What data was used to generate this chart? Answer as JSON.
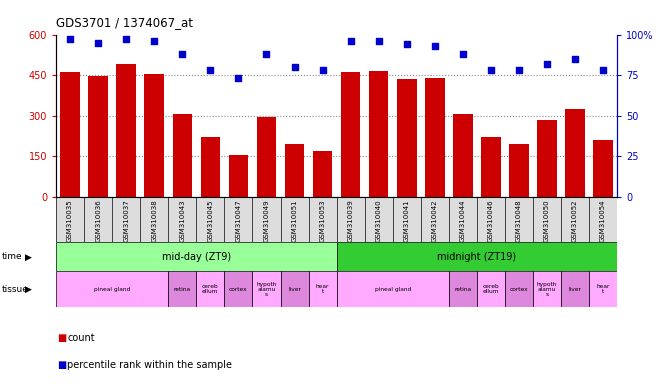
{
  "title": "GDS3701 / 1374067_at",
  "samples": [
    "GSM310035",
    "GSM310036",
    "GSM310037",
    "GSM310038",
    "GSM310043",
    "GSM310045",
    "GSM310047",
    "GSM310049",
    "GSM310051",
    "GSM310053",
    "GSM310039",
    "GSM310040",
    "GSM310041",
    "GSM310042",
    "GSM310044",
    "GSM310046",
    "GSM310048",
    "GSM310050",
    "GSM310052",
    "GSM310054"
  ],
  "counts": [
    460,
    445,
    490,
    455,
    305,
    220,
    155,
    295,
    195,
    170,
    460,
    465,
    435,
    440,
    305,
    220,
    195,
    285,
    325,
    210
  ],
  "percentiles": [
    97,
    95,
    97,
    96,
    88,
    78,
    73,
    88,
    80,
    78,
    96,
    96,
    94,
    93,
    88,
    78,
    78,
    82,
    85,
    78
  ],
  "bar_color": "#cc0000",
  "dot_color": "#0000cc",
  "ylim_left": [
    0,
    600
  ],
  "ylim_right": [
    0,
    100
  ],
  "yticks_left": [
    0,
    150,
    300,
    450,
    600
  ],
  "yticks_right": [
    0,
    25,
    50,
    75,
    100
  ],
  "time_groups": [
    {
      "label": "mid-day (ZT9)",
      "start": 0,
      "end": 10,
      "color": "#99ff99"
    },
    {
      "label": "midnight (ZT19)",
      "start": 10,
      "end": 20,
      "color": "#33cc33"
    }
  ],
  "background_color": "#ffffff",
  "grid_color": "#888888",
  "tick_color_left": "#cc0000",
  "tick_color_right": "#0000cc",
  "xtick_bg": "#dddddd",
  "tissue_segments": [
    {
      "label": "pineal gland",
      "start": 0,
      "end": 4,
      "color": "#ffaaff"
    },
    {
      "label": "retina",
      "start": 4,
      "end": 5,
      "color": "#dd88dd"
    },
    {
      "label": "cereb\nellum",
      "start": 5,
      "end": 6,
      "color": "#ffaaff"
    },
    {
      "label": "cortex",
      "start": 6,
      "end": 7,
      "color": "#dd88dd"
    },
    {
      "label": "hypoth\nalamu\ns",
      "start": 7,
      "end": 8,
      "color": "#ffaaff"
    },
    {
      "label": "liver",
      "start": 8,
      "end": 9,
      "color": "#dd88dd"
    },
    {
      "label": "hear\nt",
      "start": 9,
      "end": 10,
      "color": "#ffaaff"
    },
    {
      "label": "pineal gland",
      "start": 10,
      "end": 14,
      "color": "#ffaaff"
    },
    {
      "label": "retina",
      "start": 14,
      "end": 15,
      "color": "#dd88dd"
    },
    {
      "label": "cereb\nellum",
      "start": 15,
      "end": 16,
      "color": "#ffaaff"
    },
    {
      "label": "cortex",
      "start": 16,
      "end": 17,
      "color": "#dd88dd"
    },
    {
      "label": "hypoth\nalamu\ns",
      "start": 17,
      "end": 18,
      "color": "#ffaaff"
    },
    {
      "label": "liver",
      "start": 18,
      "end": 19,
      "color": "#dd88dd"
    },
    {
      "label": "hear\nt",
      "start": 19,
      "end": 20,
      "color": "#ffaaff"
    }
  ],
  "legend_items": [
    {
      "label": "count",
      "color": "#cc0000"
    },
    {
      "label": "percentile rank within the sample",
      "color": "#0000cc"
    }
  ]
}
